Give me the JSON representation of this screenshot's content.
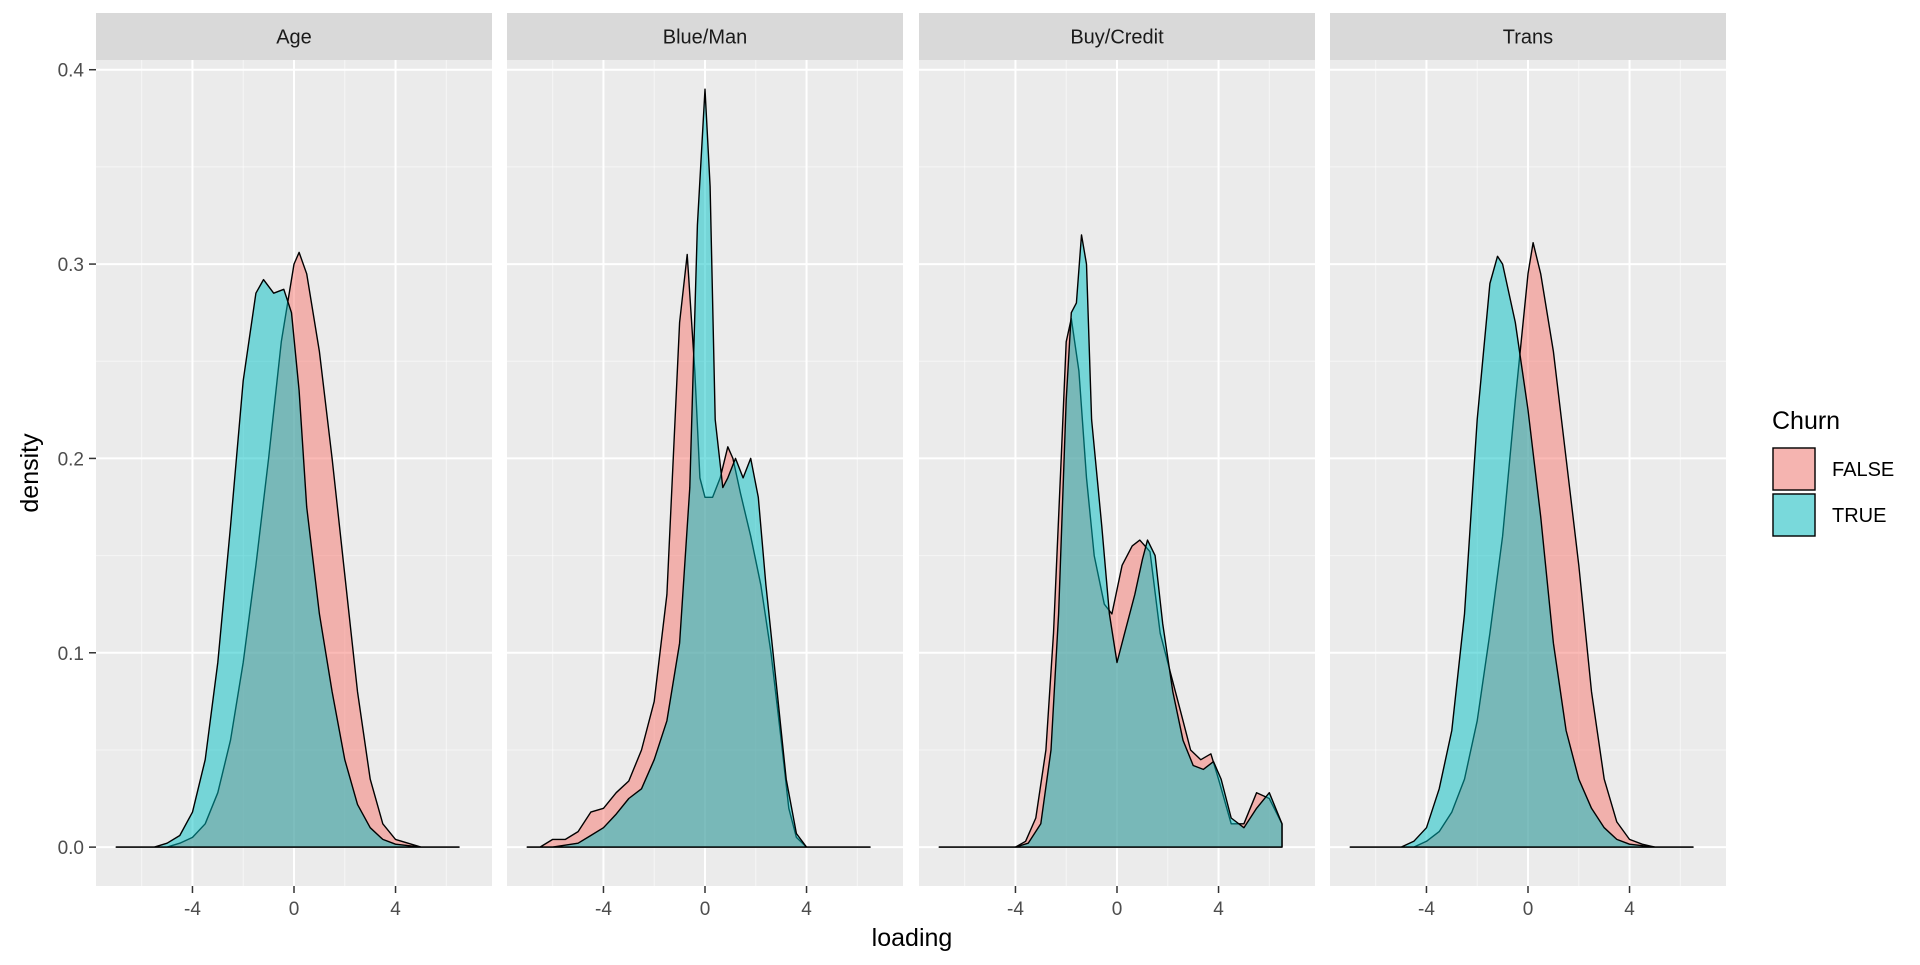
{
  "chart_data": {
    "type": "area",
    "xlabel": "loading",
    "ylabel": "density",
    "xlim": [
      -7.8,
      7.8
    ],
    "ylim": [
      -0.02,
      0.405
    ],
    "x_ticks": [
      {
        "value": -4,
        "label": "-4"
      },
      {
        "value": 0,
        "label": "0"
      },
      {
        "value": 4,
        "label": "4"
      }
    ],
    "y_ticks": [
      {
        "value": 0.0,
        "label": "0.0"
      },
      {
        "value": 0.1,
        "label": "0.1"
      },
      {
        "value": 0.2,
        "label": "0.2"
      },
      {
        "value": 0.3,
        "label": "0.3"
      },
      {
        "value": 0.4,
        "label": "0.4"
      }
    ],
    "grid": true,
    "legend": {
      "title": "Churn",
      "position": "right",
      "entries": [
        {
          "label": "FALSE",
          "color": "#F8766D"
        },
        {
          "label": "TRUE",
          "color": "#00BFC4"
        }
      ]
    },
    "colors": {
      "panel_bg": "#EBEBEB",
      "strip_bg": "#D9D9D9",
      "grid_major": "#FFFFFF",
      "axis_text": "#4D4D4D",
      "FALSE": "#F8766D",
      "TRUE": "#00BFC4"
    },
    "fill_alpha": 0.5,
    "panels": [
      {
        "title": "Age",
        "series": [
          {
            "name": "FALSE",
            "x": [
              -7.0,
              -5.0,
              -4.5,
              -4.0,
              -3.5,
              -3.0,
              -2.5,
              -2.0,
              -1.5,
              -1.0,
              -0.5,
              0.0,
              0.2,
              0.5,
              1.0,
              1.5,
              2.0,
              2.5,
              3.0,
              3.5,
              4.0,
              5.0,
              6.5
            ],
            "y": [
              0.0,
              0.0,
              0.002,
              0.005,
              0.012,
              0.028,
              0.055,
              0.095,
              0.145,
              0.2,
              0.26,
              0.3,
              0.306,
              0.295,
              0.255,
              0.2,
              0.14,
              0.08,
              0.035,
              0.012,
              0.004,
              0.0,
              0.0
            ]
          },
          {
            "name": "TRUE",
            "x": [
              -7.0,
              -5.5,
              -5.0,
              -4.5,
              -4.0,
              -3.5,
              -3.0,
              -2.5,
              -2.0,
              -1.5,
              -1.2,
              -0.8,
              -0.4,
              -0.1,
              0.2,
              0.5,
              1.0,
              1.5,
              2.0,
              2.5,
              3.0,
              3.5,
              4.0,
              5.0,
              6.5
            ],
            "y": [
              0.0,
              0.0,
              0.002,
              0.006,
              0.018,
              0.045,
              0.095,
              0.165,
              0.24,
              0.285,
              0.292,
              0.285,
              0.287,
              0.275,
              0.235,
              0.175,
              0.12,
              0.08,
              0.045,
              0.022,
              0.01,
              0.004,
              0.0015,
              0.0,
              0.0
            ]
          }
        ]
      },
      {
        "title": "Blue/Man",
        "series": [
          {
            "name": "FALSE",
            "x": [
              -7.0,
              -6.5,
              -6.0,
              -5.5,
              -5.0,
              -4.5,
              -4.0,
              -3.5,
              -3.0,
              -2.5,
              -2.0,
              -1.5,
              -1.0,
              -0.7,
              -0.4,
              -0.2,
              0.0,
              0.3,
              0.6,
              0.9,
              1.1,
              1.4,
              1.8,
              2.2,
              2.6,
              3.0,
              3.3,
              3.6,
              4.0,
              6.5
            ],
            "y": [
              0.0,
              0.0,
              0.004,
              0.004,
              0.008,
              0.018,
              0.02,
              0.028,
              0.034,
              0.05,
              0.075,
              0.13,
              0.27,
              0.305,
              0.245,
              0.19,
              0.18,
              0.18,
              0.19,
              0.206,
              0.2,
              0.182,
              0.16,
              0.135,
              0.1,
              0.055,
              0.02,
              0.005,
              0.0,
              0.0
            ]
          },
          {
            "name": "TRUE",
            "x": [
              -7.0,
              -6.0,
              -5.0,
              -4.5,
              -4.0,
              -3.5,
              -3.0,
              -2.5,
              -2.0,
              -1.5,
              -1.0,
              -0.6,
              -0.3,
              0.0,
              0.2,
              0.4,
              0.7,
              0.9,
              1.2,
              1.5,
              1.8,
              2.1,
              2.4,
              2.8,
              3.2,
              3.6,
              4.0,
              6.5
            ],
            "y": [
              0.0,
              0.0,
              0.002,
              0.006,
              0.01,
              0.017,
              0.025,
              0.03,
              0.045,
              0.065,
              0.105,
              0.185,
              0.32,
              0.39,
              0.34,
              0.22,
              0.185,
              0.19,
              0.2,
              0.19,
              0.2,
              0.18,
              0.135,
              0.085,
              0.035,
              0.007,
              0.0,
              0.0
            ]
          }
        ]
      },
      {
        "title": "Buy/Credit",
        "series": [
          {
            "name": "FALSE",
            "x": [
              -7.0,
              -4.0,
              -3.6,
              -3.2,
              -2.8,
              -2.5,
              -2.2,
              -2.0,
              -1.8,
              -1.5,
              -1.2,
              -0.9,
              -0.5,
              -0.2,
              0.2,
              0.6,
              0.9,
              1.3,
              1.7,
              2.1,
              2.5,
              2.9,
              3.3,
              3.7,
              4.0,
              4.5,
              5.0,
              5.5,
              6.0,
              6.5
            ],
            "y": [
              0.0,
              0.0,
              0.003,
              0.015,
              0.05,
              0.11,
              0.2,
              0.26,
              0.272,
              0.245,
              0.19,
              0.15,
              0.125,
              0.12,
              0.145,
              0.155,
              0.158,
              0.152,
              0.11,
              0.09,
              0.07,
              0.05,
              0.045,
              0.048,
              0.035,
              0.012,
              0.012,
              0.028,
              0.025,
              0.012
            ]
          },
          {
            "name": "TRUE",
            "x": [
              -7.0,
              -4.0,
              -3.5,
              -3.0,
              -2.6,
              -2.3,
              -2.0,
              -1.8,
              -1.6,
              -1.4,
              -1.2,
              -1.0,
              -0.6,
              -0.3,
              0.0,
              0.3,
              0.7,
              1.0,
              1.2,
              1.5,
              1.8,
              2.2,
              2.6,
              3.0,
              3.4,
              3.8,
              4.1,
              4.5,
              5.0,
              5.5,
              6.0,
              6.5
            ],
            "y": [
              0.0,
              0.0,
              0.002,
              0.012,
              0.05,
              0.12,
              0.23,
              0.275,
              0.28,
              0.315,
              0.3,
              0.22,
              0.165,
              0.12,
              0.095,
              0.11,
              0.13,
              0.148,
              0.158,
              0.15,
              0.115,
              0.08,
              0.055,
              0.042,
              0.04,
              0.044,
              0.035,
              0.015,
              0.01,
              0.02,
              0.028,
              0.012
            ]
          }
        ]
      },
      {
        "title": "Trans",
        "series": [
          {
            "name": "FALSE",
            "x": [
              -7.0,
              -4.5,
              -4.0,
              -3.5,
              -3.0,
              -2.5,
              -2.0,
              -1.5,
              -1.0,
              -0.5,
              0.0,
              0.2,
              0.5,
              1.0,
              1.5,
              2.0,
              2.5,
              3.0,
              3.5,
              4.0,
              4.5,
              5.0,
              6.5
            ],
            "y": [
              0.0,
              0.0,
              0.003,
              0.008,
              0.018,
              0.035,
              0.065,
              0.11,
              0.16,
              0.23,
              0.295,
              0.311,
              0.295,
              0.255,
              0.2,
              0.145,
              0.08,
              0.035,
              0.013,
              0.004,
              0.0015,
              0.0,
              0.0
            ]
          },
          {
            "name": "TRUE",
            "x": [
              -7.0,
              -5.0,
              -4.5,
              -4.0,
              -3.5,
              -3.0,
              -2.5,
              -2.0,
              -1.5,
              -1.2,
              -1.0,
              -0.5,
              0.0,
              0.5,
              1.0,
              1.5,
              2.0,
              2.5,
              3.0,
              3.5,
              4.0,
              5.0,
              6.5
            ],
            "y": [
              0.0,
              0.0,
              0.003,
              0.01,
              0.03,
              0.06,
              0.12,
              0.22,
              0.29,
              0.304,
              0.3,
              0.27,
              0.225,
              0.17,
              0.105,
              0.06,
              0.035,
              0.02,
              0.01,
              0.004,
              0.0015,
              0.0,
              0.0
            ]
          }
        ]
      }
    ]
  }
}
